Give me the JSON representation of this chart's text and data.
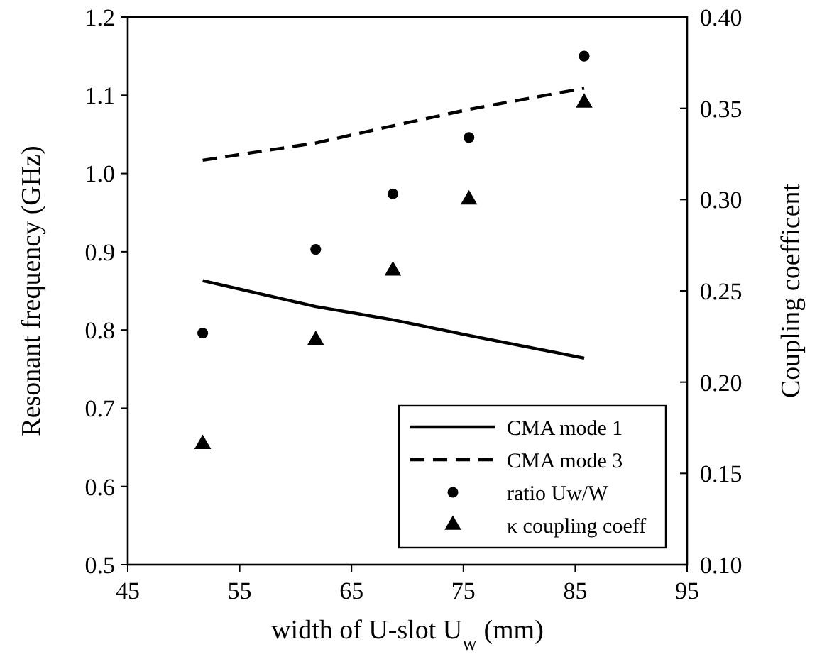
{
  "chart_data": {
    "type": "line",
    "xlabel": "width of U-slot U$_{w}$ (mm)",
    "ylabel": "Resonant frequency (GHz)",
    "y2label": "Coupling coefficent",
    "x": [
      51.7,
      61.8,
      68.7,
      75.5,
      85.8
    ],
    "xlim": [
      45,
      95
    ],
    "xticks": [
      45,
      55,
      65,
      75,
      85,
      95
    ],
    "ylim": [
      0.5,
      1.2
    ],
    "yticks": [
      {
        "value": 0.5,
        "label": "0.5"
      },
      {
        "value": 0.6,
        "label": "0.6"
      },
      {
        "value": 0.7,
        "label": "0.7"
      },
      {
        "value": 0.8,
        "label": "0.8"
      },
      {
        "value": 0.9,
        "label": "0.9"
      },
      {
        "value": 1,
        "label": "1.0"
      },
      {
        "value": 1.1,
        "label": "1.1"
      },
      {
        "value": 1.2,
        "label": "1.2"
      }
    ],
    "y2lim": [
      0.1,
      0.4
    ],
    "y2ticks": [
      {
        "value": 0.1,
        "label": "0.10"
      },
      {
        "value": 0.15,
        "label": "0.15"
      },
      {
        "value": 0.2,
        "label": "0.20"
      },
      {
        "value": 0.25,
        "label": "0.25"
      },
      {
        "value": 0.3,
        "label": "0.30"
      },
      {
        "value": 0.35,
        "label": "0.35"
      },
      {
        "value": 0.4,
        "label": "0.40"
      }
    ],
    "grid": false,
    "legend": "bottom right",
    "series": [
      {
        "name": "CMA mode 1",
        "color": "#000000",
        "line_style": "solid",
        "marker": "none",
        "values": [
          0.863,
          0.83,
          0.813,
          0.793,
          0.764
        ]
      },
      {
        "name": "CMA mode 3",
        "color": "#000000",
        "line_style": "dashed",
        "marker": "none",
        "values": [
          1.017,
          1.039,
          1.061,
          1.082,
          1.109
        ]
      },
      {
        "name": "ratio Uw/W",
        "type": "scatter",
        "color": "#000000",
        "marker": "circle",
        "values": [
          0.796,
          0.903,
          0.974,
          1.046,
          1.15
        ]
      },
      {
        "name": "κ coupling coeff",
        "type": "scatter",
        "color": "#000000",
        "marker": "triangle",
        "axis": "y2",
        "values": [
          0.166,
          0.223,
          0.261,
          0.3,
          0.353
        ]
      }
    ]
  }
}
